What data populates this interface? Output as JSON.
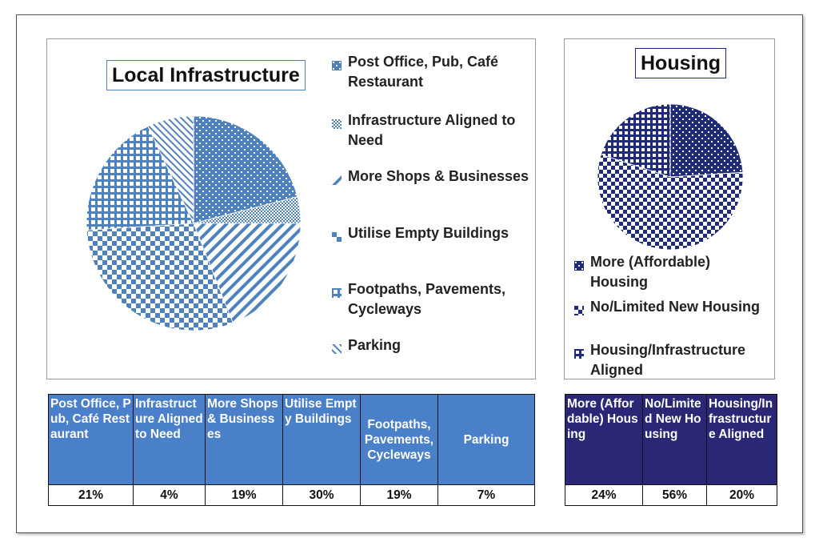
{
  "chart_data": [
    {
      "type": "pie",
      "title": "Local Infrastructure",
      "legend": "right",
      "categories": [
        "Post Office, Pub, Café Restaurant",
        "Infrastructure Aligned to Need",
        "More Shops & Businesses",
        "Utilise Empty Buildings",
        "Footpaths, Pavements, Cycleways",
        "Parking"
      ],
      "values": [
        21,
        4,
        19,
        30,
        19,
        7
      ],
      "table_headers": [
        "Post Office, Pub, Café Restaurant",
        "Infrastructure Aligned to Need",
        "More Shops & Businesses",
        "Utilise Empty Buildings",
        "Footpaths, Pavements, Cycleways",
        "Parking"
      ],
      "value_labels": [
        "21%",
        "4%",
        "19%",
        "30%",
        "19%",
        "7%"
      ],
      "colors": [
        "#4f81bd",
        "#4f81bd",
        "#4f81bd",
        "#4f81bd",
        "#4f81bd",
        "#4f81bd"
      ]
    },
    {
      "type": "pie",
      "title": "Housing",
      "legend": "bottom",
      "categories": [
        "More (Affordable) Housing",
        "No/Limited New Housing",
        "Housing/Infrastructure Aligned"
      ],
      "values": [
        24,
        56,
        20
      ],
      "table_headers": [
        "More (Affordable) Housing",
        "No/Limited New Housing",
        "Housing/Infrastructure Aligned"
      ],
      "value_labels": [
        "24%",
        "56%",
        "20%"
      ],
      "colors": [
        "#1f2a7a",
        "#1f2a7a",
        "#1f2a7a"
      ]
    }
  ]
}
